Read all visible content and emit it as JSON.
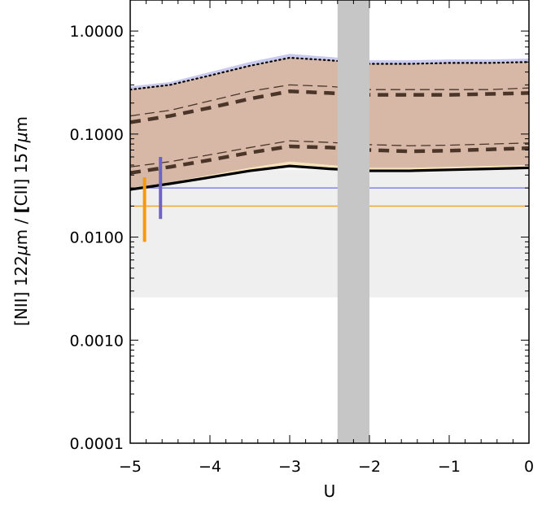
{
  "chart_data": {
    "type": "line",
    "xlabel": "U",
    "ylabel": "[NII] 122μm / [CII] 157μm",
    "ylabel_parts": [
      "[NII] 122",
      "μ",
      "m  /  ",
      "[",
      "CII] 157",
      "μ",
      "m"
    ],
    "xlim": [
      -5,
      0
    ],
    "ylim": [
      0.0001,
      2.0
    ],
    "yscale": "log",
    "grid": false,
    "x_ticks": [
      -5,
      -4,
      -3,
      -2,
      -1,
      0
    ],
    "x_tick_labels": [
      "−5",
      "−4",
      "−3",
      "−2",
      "−1",
      "0"
    ],
    "y_ticks": [
      0.0001,
      0.001,
      0.01,
      0.1,
      1.0
    ],
    "y_tick_labels": [
      "0.0001",
      "0.0010",
      "0.0100",
      "0.1000",
      "1.0000"
    ],
    "x": [
      -5,
      -4.5,
      -4,
      -3.5,
      -3,
      -2.5,
      -2,
      -1.5,
      -1,
      -0.5,
      0
    ],
    "series": [
      {
        "style": "dotted",
        "color": "#000000",
        "values": [
          0.27,
          0.3,
          0.37,
          0.46,
          0.55,
          0.52,
          0.48,
          0.48,
          0.49,
          0.49,
          0.5
        ]
      },
      {
        "style": "thin-dashed",
        "color": "#4a3528",
        "values": [
          0.15,
          0.17,
          0.21,
          0.26,
          0.3,
          0.29,
          0.27,
          0.27,
          0.27,
          0.27,
          0.28
        ]
      },
      {
        "style": "thick-dashed",
        "color": "#4a3528",
        "values": [
          0.13,
          0.15,
          0.18,
          0.22,
          0.26,
          0.25,
          0.24,
          0.24,
          0.24,
          0.245,
          0.25
        ]
      },
      {
        "style": "thin-dashed",
        "color": "#4a3528",
        "values": [
          0.048,
          0.054,
          0.063,
          0.074,
          0.086,
          0.083,
          0.079,
          0.077,
          0.078,
          0.08,
          0.082
        ]
      },
      {
        "style": "thick-dashed",
        "color": "#4a3528",
        "values": [
          0.042,
          0.048,
          0.056,
          0.066,
          0.076,
          0.074,
          0.07,
          0.068,
          0.069,
          0.071,
          0.073
        ]
      },
      {
        "style": "solid",
        "color": "#000000",
        "values": [
          0.029,
          0.033,
          0.038,
          0.044,
          0.049,
          0.046,
          0.044,
          0.044,
          0.045,
          0.046,
          0.047
        ]
      }
    ],
    "bands": [
      {
        "name": "blue-envelope",
        "color": "#c9c9f0",
        "upper": [
          0.29,
          0.32,
          0.4,
          0.5,
          0.6,
          0.56,
          0.52,
          0.52,
          0.53,
          0.53,
          0.54
        ],
        "lower": [
          0.27,
          0.3,
          0.37,
          0.46,
          0.55,
          0.52,
          0.48,
          0.48,
          0.49,
          0.49,
          0.5
        ]
      },
      {
        "name": "brown-envelope",
        "color": "#d7b8a6",
        "upper": [
          0.27,
          0.3,
          0.37,
          0.46,
          0.55,
          0.52,
          0.48,
          0.48,
          0.49,
          0.49,
          0.5
        ],
        "lower": [
          0.03,
          0.034,
          0.04,
          0.047,
          0.054,
          0.05,
          0.047,
          0.047,
          0.048,
          0.049,
          0.05
        ]
      },
      {
        "name": "yellow-envelope",
        "color": "#f5e2b8",
        "upper": [
          0.03,
          0.034,
          0.04,
          0.047,
          0.054,
          0.05,
          0.047,
          0.047,
          0.048,
          0.049,
          0.05
        ],
        "lower": [
          0.029,
          0.033,
          0.038,
          0.044,
          0.049,
          0.046,
          0.044,
          0.044,
          0.045,
          0.046,
          0.047
        ]
      }
    ],
    "h_band": {
      "y_range": [
        0.0026,
        0.045
      ],
      "color": "#efefef"
    },
    "v_band": {
      "x_range": [
        -2.4,
        -2.0
      ],
      "color": "#c6c6c6"
    },
    "h_lines": [
      {
        "y": 0.03,
        "color": "#7070dd"
      },
      {
        "y": 0.02,
        "color": "#f5a020"
      }
    ],
    "error_bars": [
      {
        "x": -4.82,
        "y_low": 0.009,
        "y_high": 0.038,
        "color": "#f59a10"
      },
      {
        "x": -4.62,
        "y_low": 0.015,
        "y_high": 0.06,
        "color": "#6f62c8"
      }
    ]
  }
}
